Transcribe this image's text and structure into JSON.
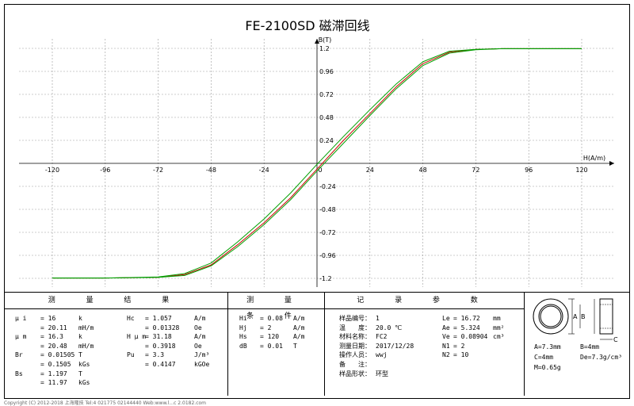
{
  "chart_data": {
    "type": "line",
    "title": "FE-2100SD 磁滞回线",
    "xlabel": "H(A/m)",
    "ylabel": "B(T)",
    "xlim": [
      -130,
      130
    ],
    "ylim": [
      -1.3,
      1.3
    ],
    "x_ticks": [
      -120,
      -96,
      -72,
      -48,
      -24,
      0,
      24,
      48,
      72,
      96,
      120
    ],
    "y_ticks": [
      -1.2,
      -0.96,
      -0.72,
      -0.48,
      -0.24,
      0.24,
      0.48,
      0.72,
      0.96,
      1.2
    ],
    "grid": true,
    "series": [
      {
        "color": "#cc0000",
        "x": [
          -120,
          -96,
          -72,
          -60,
          -48,
          -36,
          -24,
          -12,
          0,
          12,
          24,
          36,
          48,
          60,
          72,
          84,
          96,
          120
        ],
        "y": [
          -1.197,
          -1.197,
          -1.19,
          -1.16,
          -1.06,
          -0.85,
          -0.62,
          -0.36,
          -0.06,
          0.24,
          0.52,
          0.8,
          1.04,
          1.16,
          1.19,
          1.197,
          1.197,
          1.197
        ]
      },
      {
        "color": "#00a000",
        "x": [
          -120,
          -96,
          -72,
          -60,
          -48,
          -36,
          -24,
          -12,
          0,
          12,
          24,
          36,
          48,
          60,
          72,
          84,
          96,
          120
        ],
        "y": [
          -1.197,
          -1.197,
          -1.19,
          -1.17,
          -1.07,
          -0.87,
          -0.64,
          -0.38,
          -0.08,
          0.21,
          0.5,
          0.78,
          1.02,
          1.15,
          1.185,
          1.197,
          1.197,
          1.197
        ]
      },
      {
        "color": "#00a000",
        "x": [
          -120,
          -96,
          -72,
          -60,
          -48,
          -36,
          -24,
          -12,
          0,
          12,
          24,
          36,
          48,
          60,
          72,
          84,
          96,
          120
        ],
        "y": [
          -1.197,
          -1.197,
          -1.185,
          -1.15,
          -1.04,
          -0.82,
          -0.58,
          -0.31,
          -0.01,
          0.28,
          0.56,
          0.83,
          1.06,
          1.17,
          1.19,
          1.197,
          1.197,
          1.197
        ]
      }
    ]
  },
  "panels": {
    "measured": {
      "header": "测 量 结 果",
      "rows": [
        [
          "μ i",
          "= 16",
          "k",
          "Hc",
          "= 1.057",
          "A/m"
        ],
        [
          "",
          "= 20.11",
          "mH/m",
          "",
          "= 0.01328",
          "Oe"
        ],
        [
          "μ m",
          "= 16.3",
          "k",
          "H μ m",
          "= 31.18",
          "A/m"
        ],
        [
          "",
          "= 20.48",
          "mH/m",
          "",
          "= 0.3918",
          "Oe"
        ],
        [
          "Br",
          "= 0.01505",
          "T",
          "Pu",
          "= 3.3",
          "J/m³"
        ],
        [
          "",
          "= 0.1505",
          "kGs",
          "",
          "= 0.4147",
          "kGOe"
        ],
        [
          "Bs",
          "= 1.197",
          "T",
          "",
          "",
          ""
        ],
        [
          "",
          "= 11.97",
          "kGs",
          "",
          "",
          ""
        ]
      ]
    },
    "conditions": {
      "header": "测 量 条 件",
      "rows": [
        [
          "Hi",
          "= 0.08",
          "A/m"
        ],
        [
          "Hj",
          "= 2",
          "A/m"
        ],
        [
          "Hs",
          "= 120",
          "A/m"
        ],
        [
          "dB",
          "= 0.01",
          "T"
        ]
      ]
    },
    "record": {
      "header": "记 录 参 数",
      "rows": [
        [
          "样品编号：",
          "1",
          "Le",
          "= 16.72",
          "mm"
        ],
        [
          "温　　度：",
          "20.0 ℃",
          "Ae",
          "= 5.324",
          "mm²"
        ],
        [
          "材料名称：",
          "FC2",
          "Ve",
          "= 0.08904",
          "cm³"
        ],
        [
          "测量日期：",
          "2017/12/28",
          "N1",
          "= 2",
          ""
        ],
        [
          "操作人员：",
          "wwj",
          "N2",
          "= 10",
          ""
        ],
        [
          "备　　注：",
          "",
          "",
          "",
          ""
        ],
        [
          "样品形状：",
          "环型",
          "",
          "",
          ""
        ]
      ]
    },
    "sample": {
      "dims": [
        "A=7.3mm",
        "B=4mm",
        "C=4mm",
        "De=7.3g/cm³",
        "M=0.65g"
      ],
      "fig_a": "A",
      "fig_b": "B",
      "fig_c": "C"
    }
  },
  "footer": "Copyright (C) 2012-2018 上海隆技 Tel:4 021775 02144440 Web:www.l...c 2.0182.com"
}
